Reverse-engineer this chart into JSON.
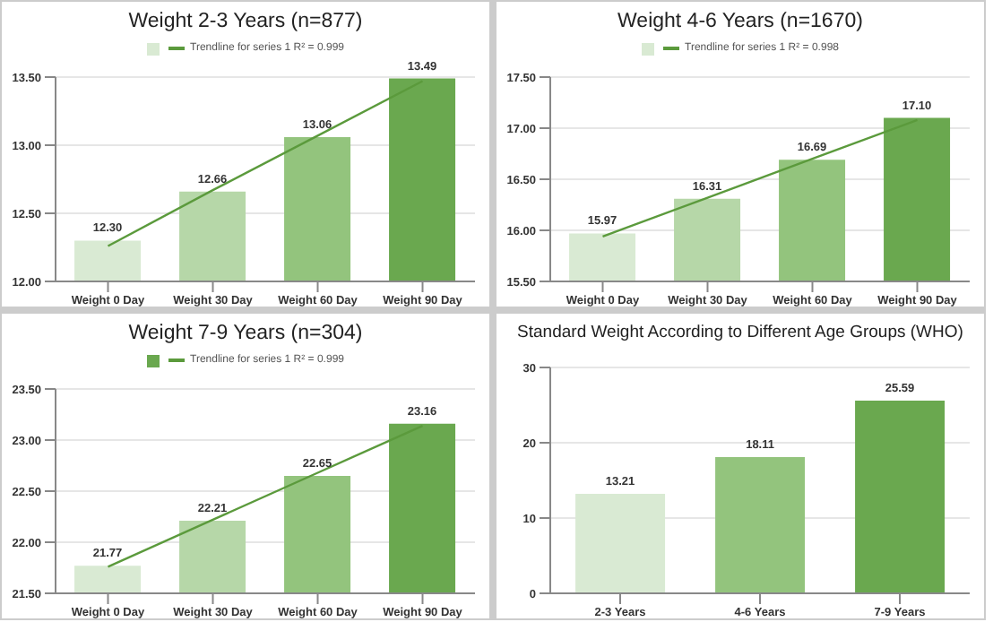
{
  "chart_data": [
    {
      "type": "bar",
      "title": "Weight 2-3 Years (n=877)",
      "categories": [
        "Weight 0 Day",
        "Weight 30 Day",
        "Weight 60 Day",
        "Weight 90 Day"
      ],
      "series": [
        {
          "color": "#d9ead3",
          "colors": [
            "#d9ead3",
            "#b6d7a8",
            "#93c47d",
            "#6aa84f"
          ],
          "values": [
            12.3,
            12.66,
            13.06,
            13.49
          ],
          "value_labels": [
            "12.30",
            "12.66",
            "13.06",
            "13.49"
          ]
        },
        {
          "type": "line",
          "name": "Trendline for series 1 R² = 0.999",
          "color": "#5b9a3c",
          "values": [
            12.26,
            12.67,
            13.07,
            13.47
          ]
        }
      ],
      "ylim": [
        12,
        13.5
      ],
      "yticks": [
        {
          "value": 12,
          "label": "12.00"
        },
        {
          "value": 12.5,
          "label": "12.50"
        },
        {
          "value": 13,
          "label": "13.00"
        },
        {
          "value": 13.5,
          "label": "13.50"
        }
      ],
      "grid": "y",
      "legend": "top"
    },
    {
      "type": "bar",
      "title": "Weight 4-6 Years (n=1670)",
      "categories": [
        "Weight 0 Day",
        "Weight 30 Day",
        "Weight 60 Day",
        "Weight 90 Day"
      ],
      "series": [
        {
          "color": "#d9ead3",
          "colors": [
            "#d9ead3",
            "#b6d7a8",
            "#93c47d",
            "#6aa84f"
          ],
          "values": [
            15.97,
            16.31,
            16.69,
            17.1
          ],
          "value_labels": [
            "15.97",
            "16.31",
            "16.69",
            "17.10"
          ]
        },
        {
          "type": "line",
          "name": "Trendline for series 1 R² = 0.998",
          "color": "#5b9a3c",
          "values": [
            15.94,
            16.32,
            16.7,
            17.08
          ]
        }
      ],
      "ylim": [
        15.5,
        17.5
      ],
      "yticks": [
        {
          "value": 15.5,
          "label": "15.50"
        },
        {
          "value": 16,
          "label": "16.00"
        },
        {
          "value": 16.5,
          "label": "16.50"
        },
        {
          "value": 17,
          "label": "17.00"
        },
        {
          "value": 17.5,
          "label": "17.50"
        }
      ],
      "grid": "y",
      "legend": "top"
    },
    {
      "type": "bar",
      "title": "Weight 7-9 Years (n=304)",
      "categories": [
        "Weight 0 Day",
        "Weight 30 Day",
        "Weight 60 Day",
        "Weight 90 Day"
      ],
      "series": [
        {
          "color": "#6aa84f",
          "colors": [
            "#d9ead3",
            "#b6d7a8",
            "#93c47d",
            "#6aa84f"
          ],
          "values": [
            21.77,
            22.21,
            22.65,
            23.16
          ],
          "value_labels": [
            "21.77",
            "22.21",
            "22.65",
            "23.16"
          ]
        },
        {
          "type": "line",
          "name": "Trendline for series 1 R² = 0.999",
          "color": "#5b9a3c",
          "values": [
            21.76,
            22.22,
            22.68,
            23.14
          ]
        }
      ],
      "ylim": [
        21.5,
        23.5
      ],
      "yticks": [
        {
          "value": 21.5,
          "label": "21.50"
        },
        {
          "value": 22,
          "label": "22.00"
        },
        {
          "value": 22.5,
          "label": "22.50"
        },
        {
          "value": 23,
          "label": "23.00"
        },
        {
          "value": 23.5,
          "label": "23.50"
        }
      ],
      "grid": "y",
      "legend": "top"
    },
    {
      "type": "bar",
      "title": "Standard Weight According to Different Age Groups (WHO)",
      "categories": [
        "2-3 Years",
        "4-6 Years",
        "7-9 Years"
      ],
      "series": [
        {
          "colors": [
            "#d9ead3",
            "#93c47d",
            "#6aa84f"
          ],
          "values": [
            13.21,
            18.11,
            25.59
          ],
          "value_labels": [
            "13.21",
            "18.11",
            "25.59"
          ]
        }
      ],
      "ylim": [
        0,
        30
      ],
      "yticks": [
        0,
        10,
        20,
        30
      ],
      "grid": "y"
    }
  ]
}
